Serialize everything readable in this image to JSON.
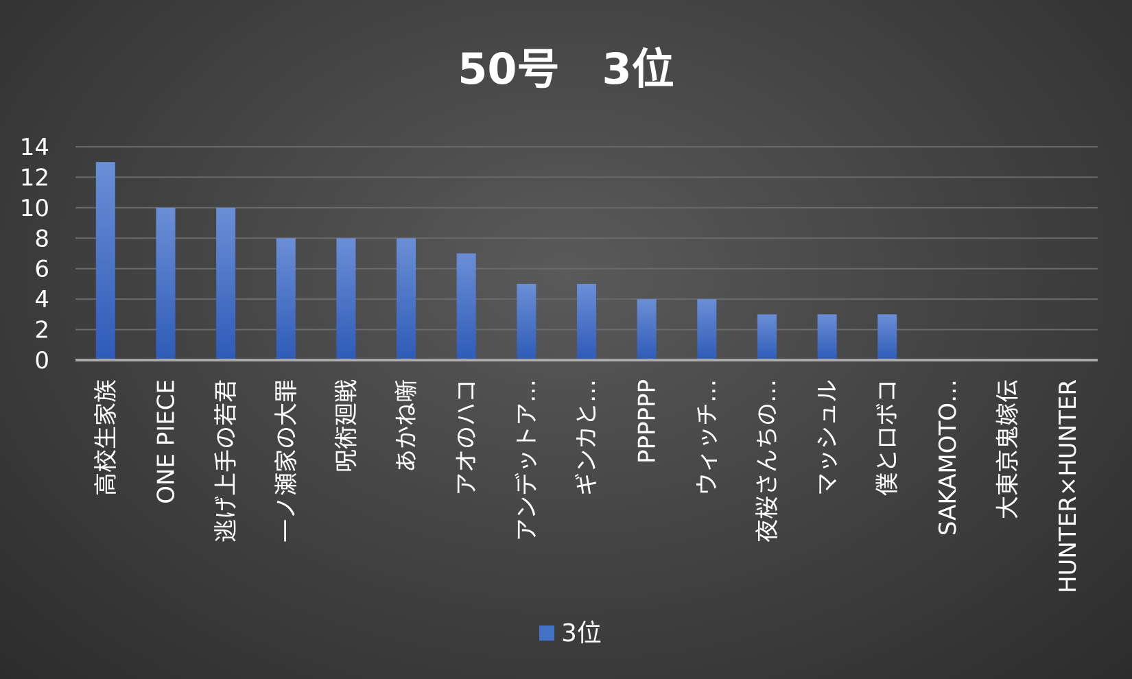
{
  "chart_data": {
    "type": "bar",
    "title": "50号　3位",
    "categories": [
      "高校生家族",
      "ONE PIECE",
      "逃げ上手の若君",
      "一ノ瀬家の大罪",
      "呪術廻戦",
      "あかね噺",
      "アオのハコ",
      "アンデットア…",
      "ギンカと…",
      "PPPPPP",
      "ウィッチ…",
      "夜桜さんちの…",
      "マッシュル",
      "僕とロボコ",
      "SAKAMOTO…",
      "大東京鬼嫁伝",
      "HUNTER×HUNTER"
    ],
    "series": [
      {
        "name": "3位",
        "values": [
          13,
          10,
          10,
          8,
          8,
          8,
          7,
          5,
          5,
          4,
          4,
          3,
          3,
          3,
          0,
          0,
          0
        ],
        "color": "#4472c4"
      }
    ],
    "yticks": [
      "0",
      "2",
      "4",
      "6",
      "8",
      "10",
      "12",
      "14"
    ],
    "ylim": [
      0,
      14
    ],
    "grid": true,
    "legend_position": "bottom"
  }
}
